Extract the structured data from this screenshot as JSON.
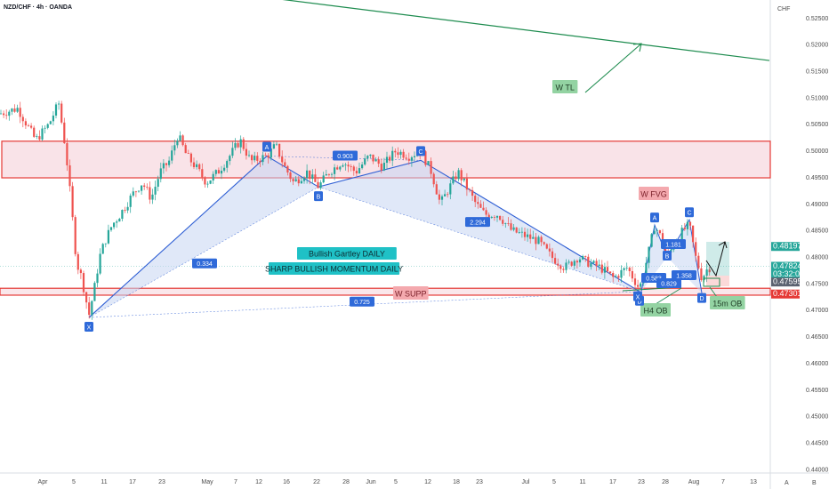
{
  "header": {
    "symbol": "NZD/CHF · 4h · OANDA"
  },
  "axis": {
    "currency": "CHF",
    "corner_left": "A",
    "corner_right": "B"
  },
  "colors": {
    "candle_up": "#26a69a",
    "candle_down": "#ef5350",
    "zone_fill": "#f7d7de",
    "zone_border": "#e53935",
    "pattern_fill": "#c7d6f3",
    "pattern_line": "#2f5fd4",
    "trendline": "#1e8c4f",
    "label_blue": "#2f6ad9",
    "annotation_green": "#93d3a2",
    "annotation_red": "#f4a9ae",
    "annotation_teal": "#1fc1c6"
  },
  "chart_data": {
    "type": "candlestick",
    "title": "NZD/CHF · 4h · OANDA",
    "ylim": [
      0.4393,
      0.5284
    ],
    "xlim": [
      0,
      865
    ],
    "y_ticks": [
      "0.52500",
      "0.52000",
      "0.51500",
      "0.51000",
      "0.50500",
      "0.50000",
      "0.49500",
      "0.49000",
      "0.48500",
      "0.48000",
      "0.47500",
      "0.47000",
      "0.46500",
      "0.46000",
      "0.45500",
      "0.45000",
      "0.44500",
      "0.44000"
    ],
    "y_tick_values": [
      0.525,
      0.52,
      0.515,
      0.51,
      0.505,
      0.5,
      0.495,
      0.49,
      0.485,
      0.48,
      0.475,
      0.47,
      0.465,
      0.46,
      0.455,
      0.45,
      0.445,
      0.44
    ],
    "x_ticks": [
      {
        "label": "Apr",
        "x": 48
      },
      {
        "label": "5",
        "x": 83
      },
      {
        "label": "11",
        "x": 117
      },
      {
        "label": "17",
        "x": 149
      },
      {
        "label": "23",
        "x": 182
      },
      {
        "label": "May",
        "x": 233
      },
      {
        "label": "7",
        "x": 265
      },
      {
        "label": "12",
        "x": 291
      },
      {
        "label": "16",
        "x": 322
      },
      {
        "label": "22",
        "x": 356
      },
      {
        "label": "28",
        "x": 389
      },
      {
        "label": "Jun",
        "x": 417
      },
      {
        "label": "5",
        "x": 445
      },
      {
        "label": "12",
        "x": 481
      },
      {
        "label": "18",
        "x": 513
      },
      {
        "label": "23",
        "x": 539
      },
      {
        "label": "Jul",
        "x": 591
      },
      {
        "label": "5",
        "x": 623
      },
      {
        "label": "11",
        "x": 655
      },
      {
        "label": "17",
        "x": 689
      },
      {
        "label": "23",
        "x": 721
      },
      {
        "label": "28",
        "x": 748
      },
      {
        "label": "Aug",
        "x": 780
      },
      {
        "label": "7",
        "x": 813
      },
      {
        "label": "13",
        "x": 847
      }
    ],
    "price_markers": [
      {
        "value": 0.48197,
        "label": "0.48197",
        "color": "#26a69a"
      },
      {
        "value": 0.47824,
        "label": "0.47824",
        "color": "#26a69a"
      },
      {
        "label": "03:32:07",
        "color": "#26a69a"
      },
      {
        "value": 0.47595,
        "label": "0.47595",
        "color": "#5b6270"
      },
      {
        "value": 0.47301,
        "label": "0.47301",
        "color": "#e53935"
      }
    ],
    "zones": [
      {
        "name": "W FVG",
        "y_top": 0.5018,
        "y_bottom": 0.4949
      },
      {
        "name": "W SUPP",
        "y_top": 0.4741,
        "y_bottom": 0.4728
      }
    ],
    "pattern_points": [
      {
        "name": "X",
        "x": 100,
        "y": 0.4686
      },
      {
        "name": "A",
        "x": 300,
        "y": 0.499
      },
      {
        "name": "B",
        "x": 358,
        "y": 0.4932
      },
      {
        "name": "C",
        "x": 473,
        "y": 0.4982
      },
      {
        "name": "D",
        "x": 719,
        "y": 0.4735
      }
    ],
    "ratios": [
      {
        "label": "0.334",
        "x": 230,
        "y": 0.4787
      },
      {
        "label": "0.903",
        "x": 388,
        "y": 0.499
      },
      {
        "label": "2.294",
        "x": 537,
        "y": 0.4865
      },
      {
        "label": "0.725",
        "x": 407,
        "y": 0.4715
      }
    ],
    "mini_pattern": {
      "points": [
        {
          "name": "X",
          "x": 721,
          "y": 0.4735
        },
        {
          "name": "A",
          "x": 736,
          "y": 0.486
        },
        {
          "name": "B",
          "x": 750,
          "y": 0.48
        },
        {
          "name": "C",
          "x": 775,
          "y": 0.487
        },
        {
          "name": "D",
          "x": 789,
          "y": 0.4732
        }
      ],
      "ratios": [
        "0.583",
        "1.181",
        "1.358",
        "0.829"
      ]
    },
    "annotations": [
      {
        "text": "W TL",
        "kind": "green"
      },
      {
        "text": "W FVG",
        "kind": "red"
      },
      {
        "text": "W SUPP",
        "kind": "red"
      },
      {
        "text": "Bullish Gartley DAILY",
        "kind": "teal"
      },
      {
        "text": "SHARP BULLISH MOMENTUM DAILY",
        "kind": "teal"
      },
      {
        "text": "H4 OB",
        "kind": "green"
      },
      {
        "text": "15m OB",
        "kind": "green"
      }
    ],
    "trendline": {
      "from": {
        "x": 270,
        "y": 0.5295
      },
      "to": {
        "x": 865,
        "y": 0.517
      }
    },
    "candles_path": [
      [
        0,
        0.507
      ],
      [
        20,
        0.508
      ],
      [
        40,
        0.502
      ],
      [
        55,
        0.505
      ],
      [
        66,
        0.509
      ],
      [
        74,
        0.5
      ],
      [
        80,
        0.49
      ],
      [
        86,
        0.479
      ],
      [
        92,
        0.476
      ],
      [
        100,
        0.469
      ],
      [
        106,
        0.474
      ],
      [
        112,
        0.48
      ],
      [
        118,
        0.483
      ],
      [
        126,
        0.486
      ],
      [
        135,
        0.488
      ],
      [
        150,
        0.492
      ],
      [
        160,
        0.494
      ],
      [
        170,
        0.491
      ],
      [
        180,
        0.496
      ],
      [
        190,
        0.498
      ],
      [
        200,
        0.503
      ],
      [
        210,
        0.499
      ],
      [
        220,
        0.497
      ],
      [
        232,
        0.494
      ],
      [
        245,
        0.496
      ],
      [
        258,
        0.499
      ],
      [
        270,
        0.502
      ],
      [
        282,
        0.498
      ],
      [
        300,
        0.499
      ],
      [
        310,
        0.501
      ],
      [
        320,
        0.497
      ],
      [
        330,
        0.494
      ],
      [
        345,
        0.496
      ],
      [
        358,
        0.4932
      ],
      [
        370,
        0.496
      ],
      [
        385,
        0.498
      ],
      [
        400,
        0.496
      ],
      [
        415,
        0.499
      ],
      [
        430,
        0.497
      ],
      [
        445,
        0.5
      ],
      [
        460,
        0.499
      ],
      [
        473,
        0.5
      ],
      [
        485,
        0.496
      ],
      [
        495,
        0.49
      ],
      [
        505,
        0.493
      ],
      [
        515,
        0.496
      ],
      [
        525,
        0.493
      ],
      [
        535,
        0.49
      ],
      [
        545,
        0.488
      ],
      [
        560,
        0.488
      ],
      [
        575,
        0.485
      ],
      [
        590,
        0.484
      ],
      [
        605,
        0.483
      ],
      [
        620,
        0.48
      ],
      [
        635,
        0.478
      ],
      [
        650,
        0.48
      ],
      [
        660,
        0.479
      ],
      [
        675,
        0.478
      ],
      [
        690,
        0.476
      ],
      [
        705,
        0.478
      ],
      [
        719,
        0.474
      ],
      [
        728,
        0.48
      ],
      [
        736,
        0.486
      ],
      [
        745,
        0.483
      ],
      [
        750,
        0.48
      ],
      [
        760,
        0.483
      ],
      [
        768,
        0.485
      ],
      [
        775,
        0.486
      ],
      [
        782,
        0.48
      ],
      [
        789,
        0.476
      ],
      [
        796,
        0.478
      ]
    ]
  }
}
